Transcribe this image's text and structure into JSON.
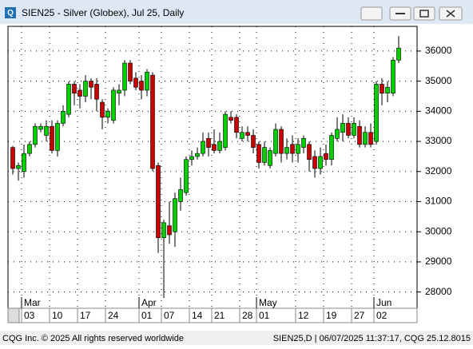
{
  "chart_data": {
    "type": "candlestick",
    "title": "SIEN25 - Silver (Globex), Jul 25, Daily",
    "footer_left": "CQG Inc. © 2025 All rights reserved worldwide",
    "footer_right": "SIEN25,D | 06/07/2025 11:37:17, CQG 25.12.8015",
    "categories": [
      null,
      null,
      "03",
      null,
      null,
      null,
      null,
      "10",
      null,
      null,
      null,
      null,
      "17",
      null,
      null,
      null,
      null,
      "24",
      null,
      null,
      null,
      null,
      null,
      "01",
      null,
      null,
      null,
      "07",
      null,
      null,
      null,
      null,
      "14",
      null,
      null,
      null,
      "21",
      null,
      null,
      null,
      null,
      "28",
      null,
      null,
      "01",
      null,
      null,
      null,
      null,
      null,
      null,
      "12",
      null,
      null,
      null,
      null,
      "19",
      null,
      null,
      null,
      null,
      "27",
      null,
      null,
      null,
      "02",
      null,
      null,
      null,
      null
    ],
    "months": [
      null,
      null,
      "Mar",
      null,
      null,
      null,
      null,
      null,
      null,
      null,
      null,
      null,
      null,
      null,
      null,
      null,
      null,
      null,
      null,
      null,
      null,
      null,
      null,
      "Apr",
      null,
      null,
      null,
      null,
      null,
      null,
      null,
      null,
      null,
      null,
      null,
      null,
      null,
      null,
      null,
      null,
      null,
      null,
      null,
      null,
      "May",
      null,
      null,
      null,
      null,
      null,
      null,
      null,
      null,
      null,
      null,
      null,
      null,
      null,
      null,
      null,
      null,
      null,
      null,
      null,
      null,
      "Jun",
      null,
      null,
      null,
      null
    ],
    "open": [
      32800,
      32100,
      32000,
      32600,
      32900,
      33400,
      33200,
      33500,
      32700,
      33600,
      33900,
      34900,
      34700,
      34500,
      35000,
      34900,
      34300,
      33800,
      33700,
      34600,
      34700,
      35600,
      35100,
      35000,
      34700,
      35200,
      32200,
      29800,
      30200,
      30000,
      31000,
      31300,
      32400,
      32500,
      32600,
      33100,
      32900,
      32700,
      32800,
      33800,
      33800,
      33100,
      33300,
      33200,
      32900,
      32300,
      32200,
      32600,
      33400,
      32600,
      32900,
      32600,
      32800,
      32900,
      32500,
      32100,
      32600,
      32400,
      33100,
      33300,
      33600,
      33200,
      33500,
      32900,
      33300,
      33000,
      34900,
      34600,
      34600,
      35700
    ],
    "high": [
      32850,
      32300,
      32900,
      33000,
      33600,
      33600,
      33700,
      33700,
      33700,
      34200,
      35000,
      35000,
      34900,
      35200,
      35100,
      35100,
      34400,
      34100,
      34800,
      34900,
      35700,
      35700,
      35300,
      35200,
      35400,
      35300,
      32300,
      30400,
      31000,
      31300,
      31800,
      32500,
      32700,
      32800,
      33300,
      33300,
      33400,
      33300,
      34000,
      34000,
      33900,
      33500,
      33500,
      33400,
      33000,
      33000,
      32800,
      33600,
      33500,
      33100,
      33200,
      33100,
      33200,
      33000,
      32700,
      32800,
      32900,
      33300,
      33800,
      33900,
      33800,
      33800,
      33700,
      33500,
      33600,
      35000,
      35100,
      35000,
      35800,
      36500
    ],
    "low": [
      31900,
      31700,
      31800,
      32500,
      32800,
      33300,
      33000,
      32600,
      32500,
      33500,
      33800,
      34200,
      34100,
      34300,
      34400,
      34000,
      33400,
      33600,
      33600,
      34200,
      34500,
      34900,
      34700,
      34400,
      34500,
      32000,
      29300,
      27800,
      29600,
      29500,
      30700,
      31200,
      32200,
      32400,
      32500,
      32500,
      32600,
      32600,
      32700,
      33600,
      33100,
      33000,
      33000,
      32600,
      32100,
      32200,
      32100,
      32500,
      32300,
      32400,
      32300,
      32300,
      32600,
      32000,
      31800,
      31900,
      32200,
      32200,
      33000,
      33000,
      33100,
      33100,
      32800,
      32800,
      32800,
      32900,
      34200,
      34300,
      34500,
      35600
    ],
    "close": [
      32100,
      32200,
      32600,
      32900,
      33500,
      33500,
      33500,
      32700,
      33600,
      34000,
      34900,
      34600,
      34500,
      35000,
      34800,
      34400,
      33800,
      34000,
      34700,
      34700,
      35600,
      35000,
      34800,
      34700,
      35300,
      32100,
      29800,
      30300,
      29900,
      31100,
      31400,
      32400,
      32500,
      32600,
      33000,
      32800,
      32700,
      33000,
      33900,
      33700,
      33300,
      33300,
      33200,
      32800,
      32300,
      32800,
      32700,
      33400,
      32600,
      32800,
      32600,
      32900,
      33100,
      32400,
      32100,
      32500,
      32400,
      33200,
      33400,
      33600,
      33200,
      33600,
      32900,
      33300,
      32900,
      34900,
      34600,
      34800,
      35700,
      36100
    ],
    "up_color": "#00d000",
    "down_color": "#c80000",
    "ylim": [
      27460,
      36820
    ],
    "yticks": [
      28000,
      29000,
      30000,
      31000,
      32000,
      33000,
      34000,
      35000,
      36000
    ],
    "grid": true
  }
}
